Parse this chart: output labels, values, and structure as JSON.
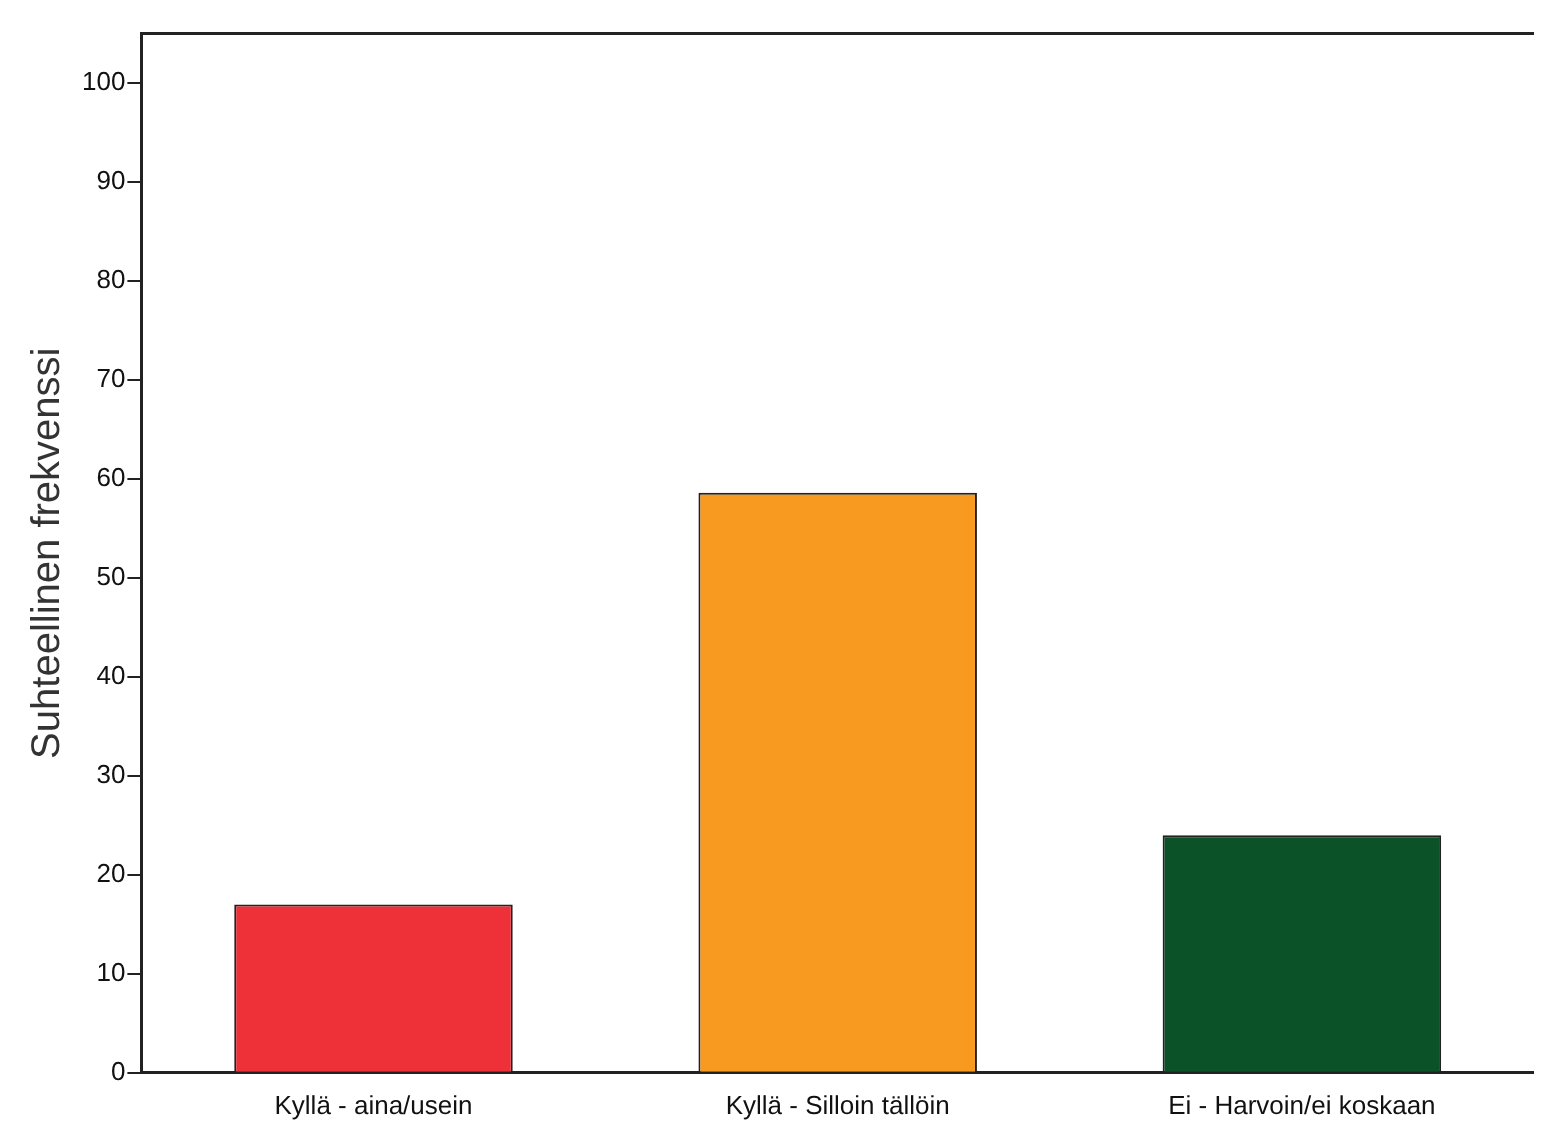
{
  "chart_data": {
    "type": "bar",
    "ylabel": "Suhteellinen frekvenssi",
    "categories": [
      "Kyllä - aina/usein",
      "Kyllä - Silloin tällöin",
      "Ei - Harvoin/ei koskaan"
    ],
    "values": [
      17,
      58.6,
      24
    ],
    "colors": [
      "#ee3039",
      "#f89a1f",
      "#0b5229"
    ],
    "ylim": [
      0,
      105
    ],
    "yticks": [
      0,
      10,
      20,
      30,
      40,
      50,
      60,
      70,
      80,
      90,
      100
    ],
    "grid": false
  }
}
